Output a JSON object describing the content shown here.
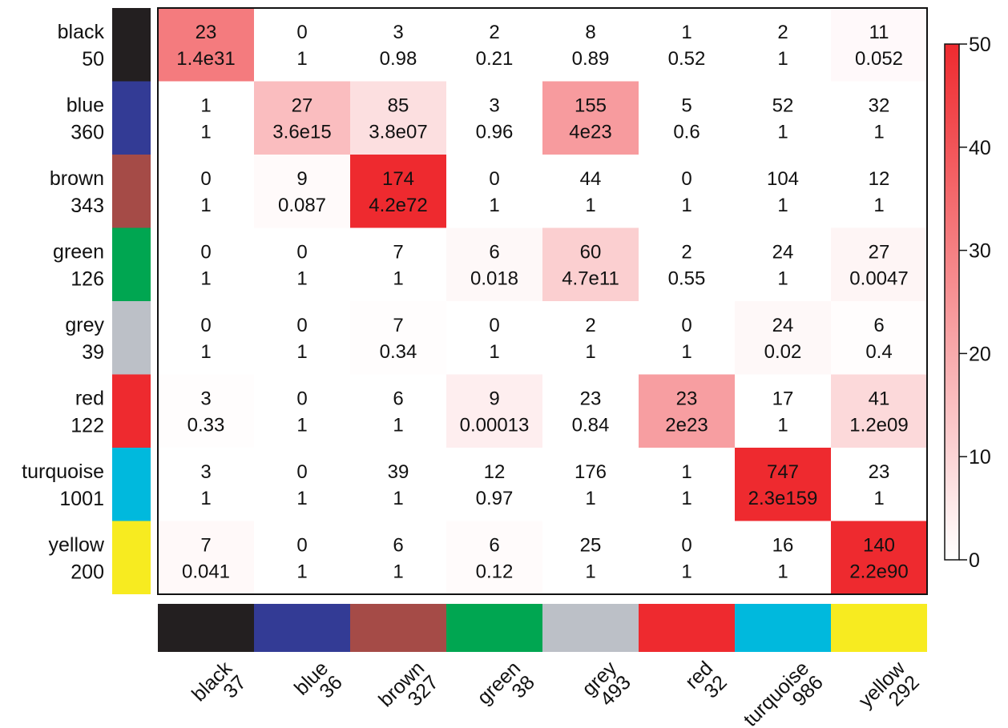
{
  "chart_data": {
    "type": "heatmap",
    "title": "",
    "xlabel": "",
    "ylabel": "",
    "rows": [
      {
        "name": "black",
        "size": "50",
        "color": "#231f20"
      },
      {
        "name": "blue",
        "size": "360",
        "color": "#333b95"
      },
      {
        "name": "brown",
        "size": "343",
        "color": "#a54b47"
      },
      {
        "name": "green",
        "size": "126",
        "color": "#00a651"
      },
      {
        "name": "grey",
        "size": "39",
        "color": "#bcc0c7"
      },
      {
        "name": "red",
        "size": "122",
        "color": "#ee2a2f"
      },
      {
        "name": "turquoise",
        "size": "1001",
        "color": "#00b9dd"
      },
      {
        "name": "yellow",
        "size": "200",
        "color": "#f7eb20"
      }
    ],
    "columns": [
      {
        "name": "black",
        "size": "37",
        "color": "#231f20"
      },
      {
        "name": "blue",
        "size": "36",
        "color": "#333b95"
      },
      {
        "name": "brown",
        "size": "327",
        "color": "#a54b47"
      },
      {
        "name": "green",
        "size": "38",
        "color": "#00a651"
      },
      {
        "name": "grey",
        "size": "493",
        "color": "#bcc0c7"
      },
      {
        "name": "red",
        "size": "32",
        "color": "#ee2a2f"
      },
      {
        "name": "turquoise",
        "size": "986",
        "color": "#00b9dd"
      },
      {
        "name": "yellow",
        "size": "292",
        "color": "#f7eb20"
      }
    ],
    "counts": [
      [
        "23",
        "0",
        "3",
        "2",
        "8",
        "1",
        "2",
        "11"
      ],
      [
        "1",
        "27",
        "85",
        "3",
        "155",
        "5",
        "52",
        "32"
      ],
      [
        "0",
        "9",
        "174",
        "0",
        "44",
        "0",
        "104",
        "12"
      ],
      [
        "0",
        "0",
        "7",
        "6",
        "60",
        "2",
        "24",
        "27"
      ],
      [
        "0",
        "0",
        "7",
        "0",
        "2",
        "0",
        "24",
        "6"
      ],
      [
        "3",
        "0",
        "6",
        "9",
        "23",
        "23",
        "17",
        "41"
      ],
      [
        "3",
        "0",
        "39",
        "12",
        "176",
        "1",
        "747",
        "23"
      ],
      [
        "7",
        "0",
        "6",
        "6",
        "25",
        "0",
        "16",
        "140"
      ]
    ],
    "pvalues": [
      [
        "1.4e31",
        "1",
        "0.98",
        "0.21",
        "0.89",
        "0.52",
        "1",
        "0.052"
      ],
      [
        "1",
        "3.6e15",
        "3.8e07",
        "0.96",
        "4e23",
        "0.6",
        "1",
        "1"
      ],
      [
        "1",
        "0.087",
        "4.2e72",
        "1",
        "1",
        "1",
        "1",
        "1"
      ],
      [
        "1",
        "1",
        "1",
        "0.018",
        "4.7e11",
        "0.55",
        "1",
        "0.0047"
      ],
      [
        "1",
        "1",
        "0.34",
        "1",
        "1",
        "1",
        "0.02",
        "0.4"
      ],
      [
        "0.33",
        "1",
        "1",
        "0.00013",
        "0.84",
        "2e23",
        "1",
        "1.2e09"
      ],
      [
        "1",
        "1",
        "1",
        "0.97",
        "1",
        "1",
        "2.3e159",
        "1"
      ],
      [
        "0.041",
        "1",
        "1",
        "0.12",
        "1",
        "1",
        "1",
        "2.2e90"
      ]
    ],
    "heat_values": [
      [
        31,
        0,
        0,
        0,
        0,
        0,
        0,
        1.3
      ],
      [
        0,
        15.4,
        7.4,
        0,
        23.4,
        0,
        0,
        0
      ],
      [
        0,
        1.1,
        50,
        0,
        0,
        0,
        0,
        0
      ],
      [
        0,
        0,
        0,
        1.7,
        11.3,
        0,
        0,
        2.3
      ],
      [
        0,
        0,
        0.5,
        0,
        0,
        0,
        1.7,
        0.4
      ],
      [
        0.5,
        0,
        0,
        3.9,
        0,
        22.7,
        0,
        8.9
      ],
      [
        0,
        0,
        0,
        0,
        0,
        0,
        50,
        0
      ],
      [
        1.4,
        0,
        0,
        0.9,
        0,
        0,
        0,
        50
      ]
    ],
    "legend": {
      "min": 0,
      "max": 50,
      "ticks": [
        0,
        10,
        20,
        30,
        40,
        50
      ],
      "tick_labels": [
        "0",
        "10",
        "20",
        "30",
        "40",
        "50"
      ],
      "color_low": "#ffffff",
      "color_high": "#ee2a2f"
    }
  }
}
